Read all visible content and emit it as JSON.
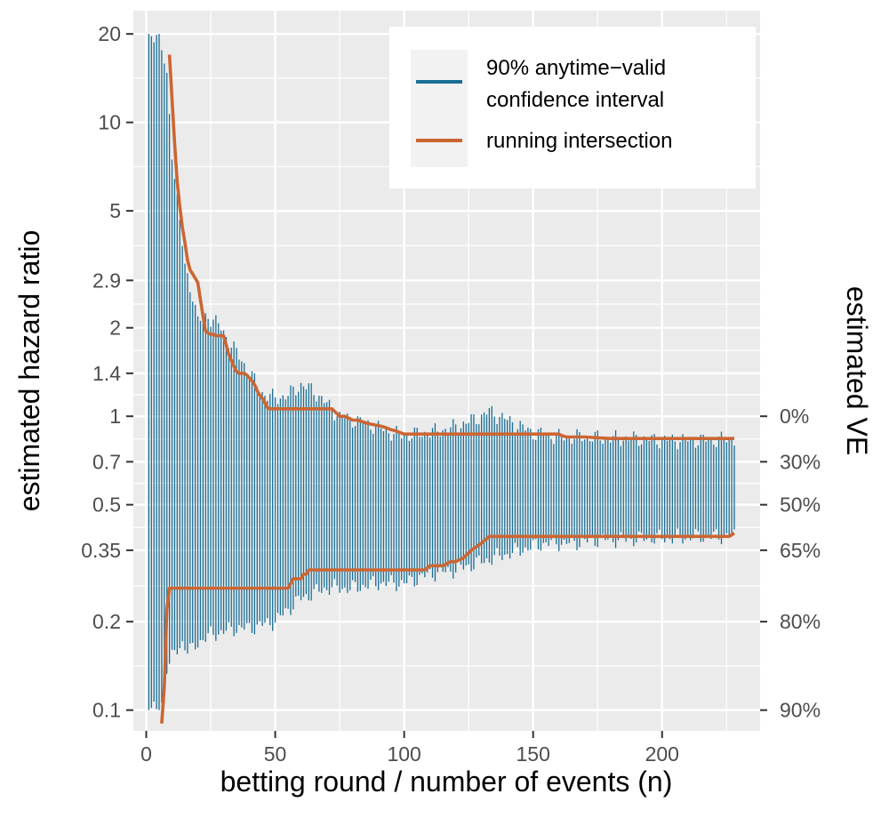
{
  "chart_data": {
    "type": "line",
    "x_axis": {
      "label": "betting round / number of events (n)",
      "range": [
        -5,
        238
      ],
      "ticks": [
        0,
        50,
        100,
        150,
        200
      ],
      "tick_labels": [
        "0",
        "50",
        "100",
        "150",
        "200"
      ]
    },
    "y_axis": {
      "label": "estimated hazard ratio",
      "scale": "log",
      "range": [
        0.085,
        24
      ],
      "ticks": [
        0.1,
        0.2,
        0.35,
        0.5,
        0.7,
        1,
        1.4,
        2,
        2.9,
        5,
        10,
        20
      ],
      "tick_labels": [
        "0.1",
        "0.2",
        "0.35",
        "0.5",
        "0.7",
        "1",
        "1.4",
        "2",
        "2.9",
        "5",
        "10",
        "20"
      ]
    },
    "y2_axis": {
      "label": "estimated VE",
      "ticks": [
        1,
        0.7,
        0.5,
        0.35,
        0.2,
        0.1
      ],
      "tick_labels": [
        "0%",
        "30%",
        "50%",
        "65%",
        "80%",
        "90%"
      ]
    },
    "grid": true,
    "legend": {
      "position": "top-right",
      "entries": [
        {
          "label_line1": "90% anytime−valid",
          "label_line2": "confidence interval",
          "color": "#1b6f96"
        },
        {
          "label": "running intersection",
          "color": "#cc6633"
        }
      ]
    },
    "series": [
      {
        "name": "90% anytime-valid confidence interval",
        "kind": "interval_bars",
        "color": "#1b6f96",
        "x_range": [
          1,
          228
        ],
        "clip": [
          0.1,
          20
        ],
        "upper_profile": {
          "x": [
            1,
            4,
            5,
            8,
            10,
            12,
            15,
            18,
            20,
            24,
            28,
            33,
            38,
            45,
            50,
            55,
            60,
            65,
            70,
            75,
            85,
            95,
            100,
            110,
            120,
            130,
            133,
            140,
            150,
            160,
            170,
            180,
            190,
            200,
            210,
            220,
            228
          ],
          "y": [
            20,
            20,
            20,
            14,
            8,
            5.5,
            3.2,
            2.6,
            2.1,
            2.2,
            2.05,
            1.75,
            1.5,
            1.2,
            1.15,
            1.18,
            1.28,
            1.22,
            1.1,
            1.0,
            0.95,
            0.88,
            0.86,
            0.88,
            0.92,
            1.0,
            1.04,
            0.97,
            0.88,
            0.85,
            0.85,
            0.84,
            0.84,
            0.83,
            0.83,
            0.83,
            0.84
          ]
        },
        "lower_profile": {
          "x": [
            1,
            4,
            5,
            7,
            8,
            10,
            12,
            14,
            16,
            18,
            20,
            25,
            30,
            35,
            40,
            45,
            50,
            55,
            60,
            65,
            70,
            80,
            90,
            100,
            110,
            120,
            130,
            135,
            140,
            150,
            155,
            165,
            175,
            185,
            195,
            205,
            215,
            228
          ],
          "y": [
            0.1,
            0.1,
            0.1,
            0.11,
            0.14,
            0.15,
            0.16,
            0.17,
            0.16,
            0.16,
            0.17,
            0.18,
            0.185,
            0.19,
            0.19,
            0.195,
            0.2,
            0.22,
            0.24,
            0.25,
            0.26,
            0.26,
            0.27,
            0.27,
            0.29,
            0.3,
            0.32,
            0.33,
            0.34,
            0.36,
            0.37,
            0.37,
            0.38,
            0.38,
            0.385,
            0.385,
            0.39,
            0.39
          ]
        }
      },
      {
        "name": "running intersection",
        "kind": "line",
        "color": "#cc6633",
        "upper": {
          "x": [
            9,
            10,
            11,
            12,
            13,
            14,
            15,
            16,
            17,
            18,
            19,
            20,
            21,
            22,
            23,
            24,
            25,
            26,
            27,
            28,
            29,
            30,
            31,
            32,
            33,
            34,
            35,
            36,
            37,
            38,
            39,
            40,
            41,
            42,
            43,
            44,
            45,
            46,
            47,
            48,
            49,
            50,
            55,
            60,
            65,
            70,
            72,
            75,
            77,
            80,
            82,
            85,
            87,
            90,
            92,
            95,
            97,
            100,
            110,
            120,
            130,
            140,
            150,
            160,
            161,
            163,
            165,
            170,
            180,
            190,
            200,
            210,
            220,
            228
          ],
          "y": [
            17,
            12,
            8.5,
            6.3,
            5.2,
            4.4,
            3.9,
            3.4,
            3.15,
            3.05,
            2.95,
            2.85,
            2.5,
            2.2,
            1.95,
            1.92,
            1.9,
            1.9,
            1.88,
            1.88,
            1.88,
            1.88,
            1.75,
            1.62,
            1.55,
            1.48,
            1.42,
            1.4,
            1.4,
            1.4,
            1.38,
            1.35,
            1.32,
            1.28,
            1.22,
            1.18,
            1.15,
            1.11,
            1.07,
            1.06,
            1.06,
            1.06,
            1.06,
            1.06,
            1.06,
            1.06,
            1.06,
            1.0,
            1.0,
            0.97,
            0.97,
            0.95,
            0.94,
            0.93,
            0.92,
            0.9,
            0.89,
            0.87,
            0.87,
            0.87,
            0.87,
            0.87,
            0.87,
            0.87,
            0.86,
            0.85,
            0.85,
            0.85,
            0.84,
            0.84,
            0.84,
            0.84,
            0.84,
            0.84
          ]
        },
        "lower": {
          "x": [
            6,
            7,
            8,
            9,
            12,
            20,
            30,
            40,
            50,
            55,
            56,
            57,
            58,
            60,
            61,
            62,
            63,
            64,
            65,
            70,
            80,
            90,
            100,
            108,
            110,
            112,
            115,
            118,
            120,
            123,
            126,
            130,
            133,
            135,
            140,
            150,
            160,
            170,
            180,
            190,
            200,
            210,
            220,
            226,
            228
          ],
          "y": [
            0.09,
            0.12,
            0.22,
            0.26,
            0.26,
            0.26,
            0.26,
            0.26,
            0.26,
            0.26,
            0.27,
            0.28,
            0.28,
            0.28,
            0.29,
            0.29,
            0.3,
            0.3,
            0.3,
            0.3,
            0.3,
            0.3,
            0.3,
            0.3,
            0.31,
            0.31,
            0.31,
            0.32,
            0.32,
            0.33,
            0.35,
            0.37,
            0.39,
            0.39,
            0.39,
            0.39,
            0.39,
            0.39,
            0.39,
            0.39,
            0.39,
            0.39,
            0.39,
            0.39,
            0.4
          ]
        }
      }
    ]
  }
}
